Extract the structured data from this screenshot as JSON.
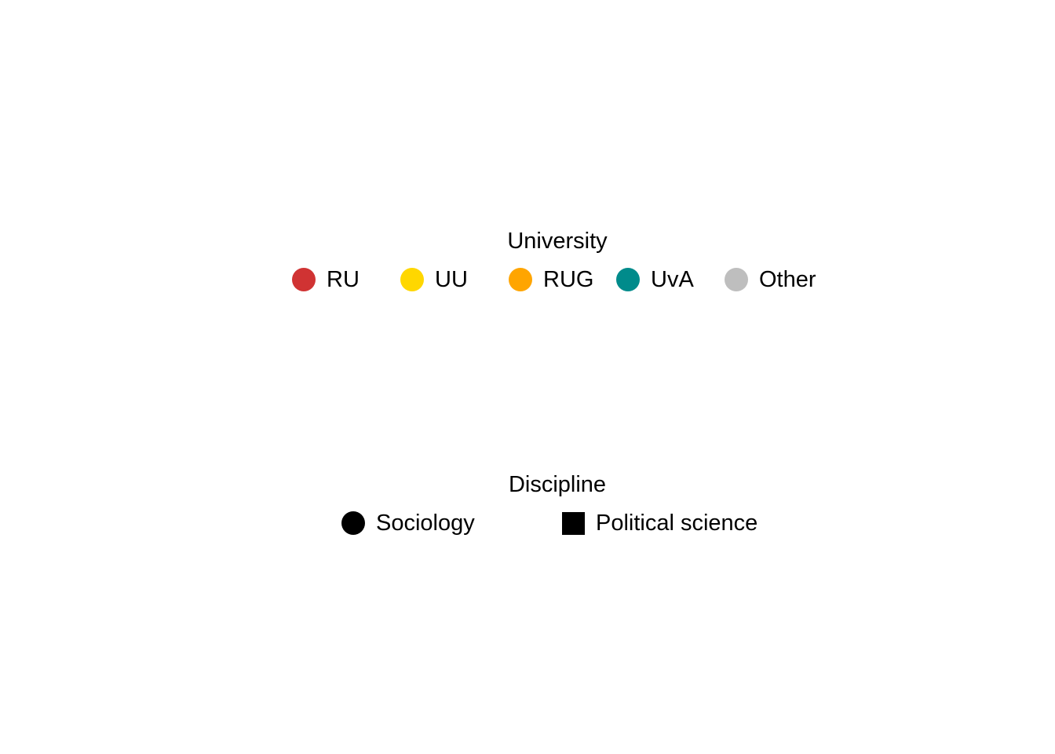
{
  "chart_data": {
    "type": "legend",
    "legends": [
      {
        "title": "University",
        "aesthetic": "colour",
        "entries": [
          {
            "label": "RU",
            "color": "#D03333",
            "shape": "circle"
          },
          {
            "label": "UU",
            "color": "#FFD700",
            "shape": "circle"
          },
          {
            "label": "RUG",
            "color": "#FFA500",
            "shape": "circle"
          },
          {
            "label": "UvA",
            "color": "#008B8B",
            "shape": "circle"
          },
          {
            "label": "Other",
            "color": "#BEBEBE",
            "shape": "circle"
          }
        ]
      },
      {
        "title": "Discipline",
        "aesthetic": "shape",
        "entries": [
          {
            "label": "Sociology",
            "color": "#000000",
            "shape": "circle"
          },
          {
            "label": "Political science",
            "color": "#000000",
            "shape": "square"
          }
        ]
      }
    ]
  }
}
